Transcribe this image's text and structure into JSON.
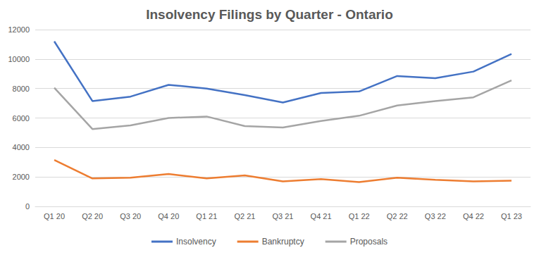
{
  "chart_data": {
    "type": "line",
    "title": "Insolvency Filings by Quarter - Ontario",
    "categories": [
      "Q1 20",
      "Q2 20",
      "Q3 20",
      "Q4 20",
      "Q1 21",
      "Q2 21",
      "Q3 21",
      "Q4 21",
      "Q1 22",
      "Q2 22",
      "Q3 22",
      "Q4 22",
      "Q1 23"
    ],
    "series": [
      {
        "name": "Insolvency",
        "color": "#4472c4",
        "values": [
          11200,
          7150,
          7450,
          8250,
          8000,
          7550,
          7050,
          7700,
          7800,
          8850,
          8700,
          9150,
          10350
        ]
      },
      {
        "name": "Bankruptcy",
        "color": "#ed7d31",
        "values": [
          3150,
          1900,
          1950,
          2200,
          1900,
          2100,
          1700,
          1850,
          1650,
          1950,
          1800,
          1700,
          1750
        ]
      },
      {
        "name": "Proposals",
        "color": "#a5a5a5",
        "values": [
          8050,
          5250,
          5500,
          6000,
          6100,
          5450,
          5350,
          5800,
          6150,
          6850,
          7150,
          7400,
          8550
        ]
      }
    ],
    "ylim": [
      0,
      12000
    ],
    "yticks": [
      0,
      2000,
      4000,
      6000,
      8000,
      10000,
      12000
    ],
    "grid": true,
    "legend": "bottom",
    "marker": "none",
    "line_style": "solid"
  }
}
